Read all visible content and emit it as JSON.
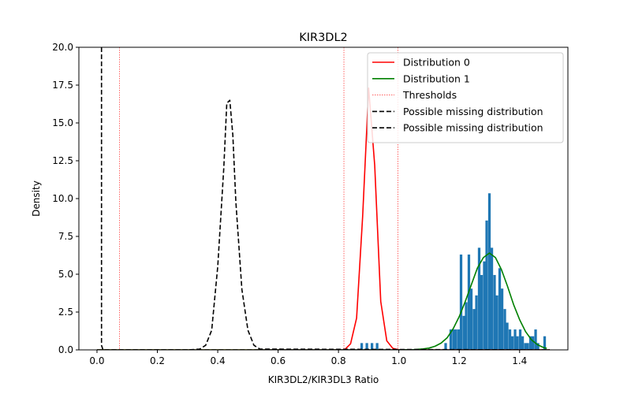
{
  "chart_data": {
    "type": "line",
    "title": "KIR3DL2",
    "xlabel": "KIR3DL2/KIR3DL3 Ratio",
    "ylabel": "Density",
    "xlim": [
      -0.06,
      1.56
    ],
    "ylim": [
      0,
      20
    ],
    "xticks": [
      0.0,
      0.2,
      0.4,
      0.6,
      0.8,
      1.0,
      1.2,
      1.4
    ],
    "xtick_labels": [
      "0.0",
      "0.2",
      "0.4",
      "0.6",
      "0.8",
      "1.0",
      "1.2",
      "1.4"
    ],
    "yticks": [
      0,
      2.5,
      5,
      7.5,
      10,
      12.5,
      15,
      17.5,
      20
    ],
    "ytick_labels": [
      "0.0",
      "2.5",
      "5.0",
      "7.5",
      "10.0",
      "12.5",
      "15.0",
      "17.5",
      "20.0"
    ],
    "grid": false,
    "legend_position": "top-right",
    "legend": [
      {
        "label": "Distribution 0",
        "style": "solid",
        "color": "#ff0000"
      },
      {
        "label": "Distribution 1",
        "style": "solid",
        "color": "#008000"
      },
      {
        "label": "Thresholds",
        "style": "dotted-thin",
        "color": "#ff0000"
      },
      {
        "label": "Possible missing distribution",
        "style": "dashed",
        "color": "#000000"
      },
      {
        "label": "Possible missing distribution",
        "style": "dashed",
        "color": "#000000"
      }
    ],
    "thresholds": [
      0.075,
      0.818,
      0.997
    ],
    "series": [
      {
        "name": "Distribution 0",
        "color": "#ff0000",
        "style": "solid",
        "x": [
          0.0,
          0.8,
          0.82,
          0.84,
          0.86,
          0.88,
          0.9,
          0.92,
          0.94,
          0.96,
          0.98,
          1.0,
          1.5
        ],
        "y": [
          0,
          0,
          0,
          0.4,
          2.1,
          8.8,
          17.3,
          12.2,
          3.2,
          0.6,
          0.1,
          0,
          0
        ]
      },
      {
        "name": "Distribution 1",
        "color": "#008000",
        "style": "solid",
        "x": [
          0.0,
          1.0,
          1.05,
          1.08,
          1.1,
          1.12,
          1.14,
          1.16,
          1.18,
          1.2,
          1.22,
          1.24,
          1.26,
          1.28,
          1.3,
          1.32,
          1.34,
          1.36,
          1.38,
          1.4,
          1.42,
          1.44,
          1.46,
          1.48,
          1.49
        ],
        "y": [
          0,
          0,
          0.02,
          0.06,
          0.12,
          0.24,
          0.45,
          0.8,
          1.4,
          2.2,
          3.2,
          4.3,
          5.4,
          6.1,
          6.4,
          6.1,
          5.3,
          4.2,
          3.0,
          2.0,
          1.2,
          0.65,
          0.33,
          0.15,
          0.1
        ]
      },
      {
        "name": "Possible missing distribution",
        "color": "#000000",
        "style": "dashed",
        "x": [
          0.0,
          0.3,
          0.34,
          0.36,
          0.38,
          0.4,
          0.42,
          0.43,
          0.44,
          0.45,
          0.46,
          0.48,
          0.5,
          0.52,
          0.54,
          1.5
        ],
        "y": [
          0,
          0,
          0.05,
          0.3,
          1.3,
          5.5,
          12.0,
          16.3,
          16.5,
          14.2,
          9.8,
          4.0,
          1.3,
          0.3,
          0.05,
          0
        ]
      },
      {
        "name": "Possible missing distribution",
        "color": "#000000",
        "style": "dashed",
        "x": [
          0.015,
          0.015,
          0.02,
          1.5
        ],
        "y": [
          20,
          0.3,
          0,
          0
        ]
      }
    ],
    "histogram": {
      "color": "#1f77b4",
      "bin_width": 0.0085,
      "bins": [
        {
          "x": 0.877,
          "y": 0.45
        },
        {
          "x": 0.894,
          "y": 0.45
        },
        {
          "x": 0.911,
          "y": 0.45
        },
        {
          "x": 0.928,
          "y": 0.45
        },
        {
          "x": 1.155,
          "y": 0.45
        },
        {
          "x": 1.172,
          "y": 1.35
        },
        {
          "x": 1.181,
          "y": 1.35
        },
        {
          "x": 1.189,
          "y": 1.35
        },
        {
          "x": 1.198,
          "y": 1.35
        },
        {
          "x": 1.206,
          "y": 6.3
        },
        {
          "x": 1.215,
          "y": 2.25
        },
        {
          "x": 1.223,
          "y": 3.15
        },
        {
          "x": 1.232,
          "y": 6.3
        },
        {
          "x": 1.24,
          "y": 4.05
        },
        {
          "x": 1.249,
          "y": 2.7
        },
        {
          "x": 1.257,
          "y": 3.6
        },
        {
          "x": 1.266,
          "y": 6.75
        },
        {
          "x": 1.274,
          "y": 4.95
        },
        {
          "x": 1.283,
          "y": 5.85
        },
        {
          "x": 1.291,
          "y": 8.55
        },
        {
          "x": 1.3,
          "y": 10.35
        },
        {
          "x": 1.308,
          "y": 6.75
        },
        {
          "x": 1.317,
          "y": 4.95
        },
        {
          "x": 1.325,
          "y": 3.6
        },
        {
          "x": 1.334,
          "y": 5.4
        },
        {
          "x": 1.342,
          "y": 4.05
        },
        {
          "x": 1.351,
          "y": 2.7
        },
        {
          "x": 1.359,
          "y": 1.8
        },
        {
          "x": 1.368,
          "y": 1.35
        },
        {
          "x": 1.376,
          "y": 0.9
        },
        {
          "x": 1.385,
          "y": 1.35
        },
        {
          "x": 1.393,
          "y": 0.9
        },
        {
          "x": 1.402,
          "y": 1.35
        },
        {
          "x": 1.41,
          "y": 0.9
        },
        {
          "x": 1.419,
          "y": 0.45
        },
        {
          "x": 1.427,
          "y": 0.45
        },
        {
          "x": 1.436,
          "y": 0.9
        },
        {
          "x": 1.444,
          "y": 0.9
        },
        {
          "x": 1.453,
          "y": 1.35
        },
        {
          "x": 1.461,
          "y": 0.45
        },
        {
          "x": 1.483,
          "y": 0.9
        }
      ]
    }
  }
}
